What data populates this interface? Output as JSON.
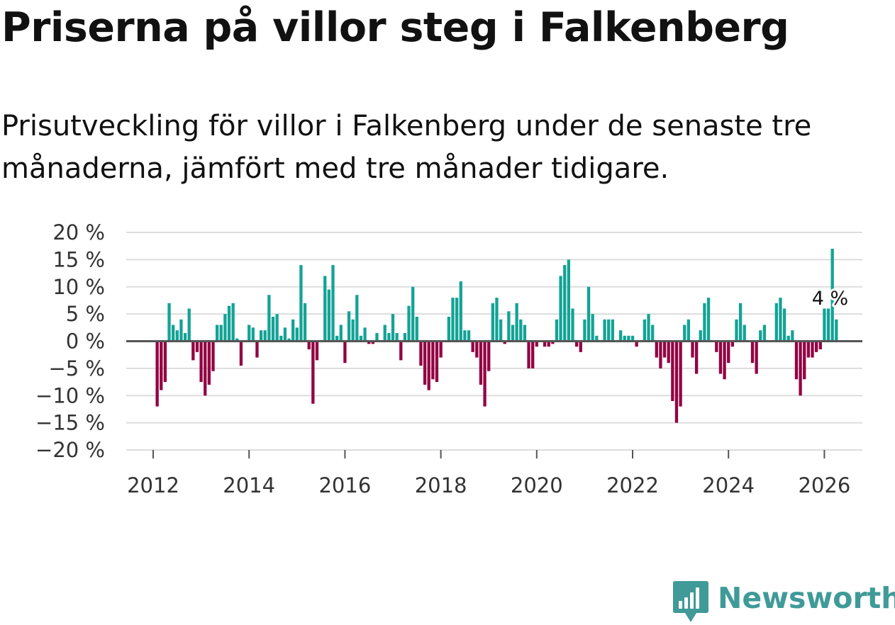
{
  "title": "Priserna på villor steg i Falkenberg",
  "subtitle": "Prisutveckling för villor i Falkenberg under de senaste tre månaderna, jämfört med tre månader tidigare.",
  "brand": {
    "name": "Newsworthy",
    "color": "#3f9a98"
  },
  "colors": {
    "positive": "#13a396",
    "negative": "#920042",
    "zero_line": "#555555",
    "grid": "#dddddd",
    "axis_text": "#333333"
  },
  "chart_data": {
    "type": "bar",
    "title": "",
    "xlabel": "",
    "ylabel": "",
    "ylim": [
      -20,
      20
    ],
    "yticks": [
      20,
      15,
      10,
      5,
      0,
      -5,
      -10,
      -15,
      -20
    ],
    "ytick_labels": [
      "20 %",
      "15 %",
      "10 %",
      "5 %",
      "0 %",
      "−5 %",
      "−10 %",
      "−15 %",
      "−20 %"
    ],
    "xticks": [
      2012,
      2014,
      2016,
      2018,
      2020,
      2022,
      2024,
      2026
    ],
    "xtick_labels": [
      "2012",
      "2014",
      "2016",
      "2018",
      "2020",
      "2022",
      "2024",
      "2026"
    ],
    "x_start": "2012-01",
    "frequency": "monthly",
    "annotation": {
      "text": "4 %",
      "at": "2026-01",
      "value": 4
    },
    "series": [
      {
        "name": "Prisutveckling",
        "values": [
          0,
          -12,
          -9,
          -7.5,
          7,
          3,
          2,
          4,
          1.5,
          6,
          -3.5,
          -2,
          -7.5,
          -10,
          -8,
          -5.5,
          3,
          3,
          5,
          6.5,
          7,
          0.5,
          -4.5,
          0,
          3,
          2.5,
          -3,
          2,
          2,
          8.5,
          4.5,
          5,
          1,
          2.5,
          0.5,
          4,
          2.5,
          14,
          7,
          -1.5,
          -11.5,
          -3.5,
          0,
          12,
          9.5,
          14,
          1,
          3,
          -4,
          5.5,
          4,
          8.5,
          1,
          2.5,
          -0.5,
          -0.5,
          1.5,
          0,
          3,
          1.5,
          5,
          1.5,
          -3.5,
          1.5,
          6.5,
          10,
          4.5,
          -4.5,
          -8,
          -9,
          -7,
          -7.5,
          -3,
          0,
          4.5,
          8,
          8,
          11,
          2,
          2,
          -2,
          -3,
          -8,
          -12,
          -5.5,
          7,
          8,
          4,
          -0.5,
          5.5,
          3,
          7,
          4,
          3,
          -5,
          -5,
          -1,
          0,
          -1,
          -1,
          -0.5,
          4,
          12,
          14,
          15,
          6,
          -1,
          -2,
          4,
          10,
          5,
          1,
          0,
          4,
          4,
          4,
          0,
          2,
          1,
          1,
          1,
          -1,
          0,
          4,
          5,
          3,
          -3,
          -5,
          -3,
          -4,
          -11,
          -15,
          -12,
          3,
          4,
          -3,
          -6,
          2,
          7,
          8,
          0,
          -2,
          -6,
          -7,
          -4,
          -1,
          4,
          7,
          3,
          0,
          -4,
          -6,
          2,
          3,
          0,
          0,
          7,
          8,
          6,
          1,
          2,
          -7,
          -10,
          -7,
          -3,
          -3,
          -2,
          -1.5,
          6,
          6,
          17,
          4
        ]
      }
    ]
  }
}
